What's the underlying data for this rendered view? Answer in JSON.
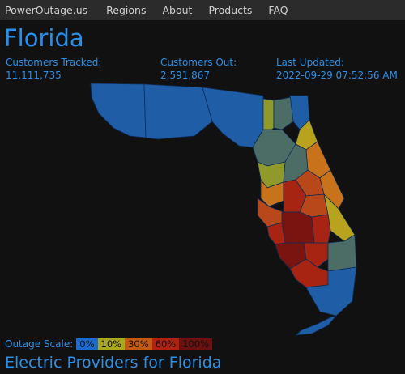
{
  "nav": {
    "brand": "PowerOutage.us",
    "items": [
      "Regions",
      "About",
      "Products",
      "FAQ"
    ]
  },
  "page": {
    "title": "Florida",
    "customers_tracked_label": "Customers Tracked:",
    "customers_tracked_value": "11,111,735",
    "customers_out_label": "Customers Out:",
    "customers_out_value": "2,591,867",
    "last_updated_label": "Last Updated:",
    "last_updated_value": "2022-09-29 07:52:56 AM"
  },
  "scale": {
    "label": "Outage Scale:",
    "steps": [
      {
        "label": "0%",
        "color": "#1a6bd1",
        "text_color": "#111111"
      },
      {
        "label": "10%",
        "color": "#a8a81a",
        "text_color": "#111111"
      },
      {
        "label": "30%",
        "color": "#c45a12",
        "text_color": "#111111"
      },
      {
        "label": "60%",
        "color": "#b0220f",
        "text_color": "#111111"
      },
      {
        "label": "100%",
        "color": "#6b0f0f",
        "text_color": "#111111"
      }
    ]
  },
  "map": {
    "colors": {
      "none": "#1f5ea6",
      "low": "#4a6a8a",
      "slate": "#4c6d66",
      "olive": "#8f9a2a",
      "mustard": "#b8a21e",
      "orange": "#c9721c",
      "burnt": "#b8481a",
      "red": "#a82412",
      "darkred": "#7a1410",
      "border": "#0e2c55"
    }
  },
  "providers": {
    "title": "Electric Providers for Florida"
  }
}
